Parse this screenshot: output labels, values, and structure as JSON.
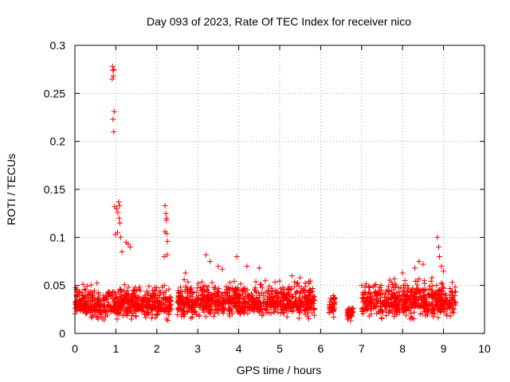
{
  "chart_data": {
    "type": "scatter",
    "title": "Day 093 of 2023, Rate Of TEC Index for receiver nico",
    "xlabel": "GPS time / hours",
    "ylabel": "ROTI / TECUs",
    "xlim": [
      0,
      10
    ],
    "ylim": [
      0,
      0.3
    ],
    "xticks": [
      0,
      1,
      2,
      3,
      4,
      5,
      6,
      7,
      8,
      9,
      10
    ],
    "yticks": [
      0,
      0.05,
      0.1,
      0.15,
      0.2,
      0.25,
      0.3
    ],
    "xtick_labels": [
      "0",
      "1",
      "2",
      "3",
      "4",
      "5",
      "6",
      "7",
      "8",
      "9",
      "10"
    ],
    "ytick_labels": [
      "0",
      "0.05",
      "0.1",
      "0.15",
      "0.2",
      "0.25",
      "0.3"
    ],
    "grid": true,
    "marker": "+",
    "color": "#ff0000",
    "segments": [
      {
        "start": 0.0,
        "end": 2.35,
        "low": 0.012,
        "mid": 0.03,
        "high": 0.055
      },
      {
        "start": 2.5,
        "end": 5.85,
        "low": 0.012,
        "mid": 0.033,
        "high": 0.06
      },
      {
        "start": 6.2,
        "end": 6.35,
        "low": 0.015,
        "mid": 0.03,
        "high": 0.045
      },
      {
        "start": 6.65,
        "end": 6.8,
        "low": 0.012,
        "mid": 0.022,
        "high": 0.03
      },
      {
        "start": 7.0,
        "end": 9.3,
        "low": 0.012,
        "mid": 0.033,
        "high": 0.06
      }
    ],
    "series": [
      {
        "name": "ROTI",
        "points": [
          [
            0.92,
            0.278
          ],
          [
            0.93,
            0.274
          ],
          [
            0.95,
            0.275
          ],
          [
            0.91,
            0.265
          ],
          [
            0.94,
            0.268
          ],
          [
            0.96,
            0.231
          ],
          [
            0.93,
            0.223
          ],
          [
            0.95,
            0.21
          ],
          [
            0.97,
            0.132
          ],
          [
            1.02,
            0.13
          ],
          [
            1.07,
            0.137
          ],
          [
            1.09,
            0.133
          ],
          [
            1.05,
            0.126
          ],
          [
            1.08,
            0.12
          ],
          [
            1.1,
            0.115
          ],
          [
            1.04,
            0.105
          ],
          [
            0.99,
            0.103
          ],
          [
            1.12,
            0.1
          ],
          [
            1.25,
            0.095
          ],
          [
            1.3,
            0.093
          ],
          [
            1.35,
            0.09
          ],
          [
            1.15,
            0.085
          ],
          [
            2.2,
            0.133
          ],
          [
            2.22,
            0.125
          ],
          [
            2.23,
            0.118
          ],
          [
            2.24,
            0.12
          ],
          [
            2.2,
            0.106
          ],
          [
            2.24,
            0.104
          ],
          [
            2.26,
            0.096
          ],
          [
            2.18,
            0.08
          ],
          [
            2.25,
            0.082
          ],
          [
            3.2,
            0.082
          ],
          [
            3.3,
            0.075
          ],
          [
            3.5,
            0.07
          ],
          [
            3.95,
            0.08
          ],
          [
            4.2,
            0.07
          ],
          [
            4.5,
            0.068
          ],
          [
            2.7,
            0.063
          ],
          [
            3.6,
            0.067
          ],
          [
            5.3,
            0.06
          ],
          [
            5.5,
            0.058
          ],
          [
            8.4,
            0.075
          ],
          [
            8.5,
            0.072
          ],
          [
            8.3,
            0.068
          ],
          [
            8.0,
            0.063
          ],
          [
            7.8,
            0.057
          ],
          [
            8.85,
            0.1
          ],
          [
            8.88,
            0.09
          ],
          [
            8.9,
            0.08
          ],
          [
            8.95,
            0.07
          ],
          [
            9.0,
            0.065
          ]
        ]
      }
    ]
  }
}
